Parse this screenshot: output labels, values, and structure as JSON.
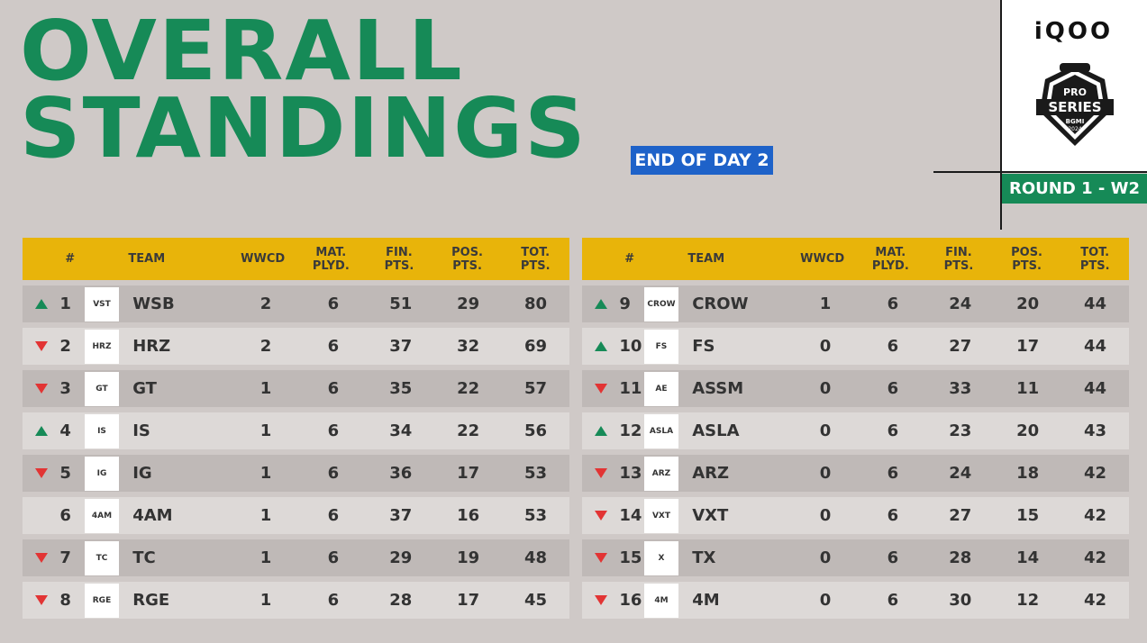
{
  "header": {
    "title_line1": "OVERALL",
    "title_line2": "STANDINGS",
    "day_label": "END OF DAY 2",
    "brand": "iQOO",
    "round_label": "ROUND 1 - W2",
    "logo_text": {
      "pro": "PRO",
      "series": "SERIES",
      "bgmi": "BGMI",
      "year": "2024"
    }
  },
  "columns": {
    "rank": "#",
    "team": "TEAM",
    "wwcd": "WWCD",
    "mat_l1": "MAT.",
    "mat_l2": "PLYD.",
    "fin_l1": "FIN.",
    "fin_l2": "PTS.",
    "pos_l1": "POS.",
    "pos_l2": "PTS.",
    "tot_l1": "TOT.",
    "tot_l2": "PTS."
  },
  "colors": {
    "green": "#168a57",
    "yellow": "#e8b40a",
    "blue": "#1e62c9",
    "red": "#e23434"
  },
  "left": [
    {
      "trend": "up",
      "rank": "1",
      "team": "WSB",
      "logo": "VST",
      "wwcd": "2",
      "mat": "6",
      "fin": "51",
      "pos": "29",
      "tot": "80"
    },
    {
      "trend": "down",
      "rank": "2",
      "team": "HRZ",
      "logo": "HRZ",
      "wwcd": "2",
      "mat": "6",
      "fin": "37",
      "pos": "32",
      "tot": "69"
    },
    {
      "trend": "down",
      "rank": "3",
      "team": "GT",
      "logo": "GT",
      "wwcd": "1",
      "mat": "6",
      "fin": "35",
      "pos": "22",
      "tot": "57"
    },
    {
      "trend": "up",
      "rank": "4",
      "team": "IS",
      "logo": "IS",
      "wwcd": "1",
      "mat": "6",
      "fin": "34",
      "pos": "22",
      "tot": "56"
    },
    {
      "trend": "down",
      "rank": "5",
      "team": "IG",
      "logo": "IG",
      "wwcd": "1",
      "mat": "6",
      "fin": "36",
      "pos": "17",
      "tot": "53"
    },
    {
      "trend": "none",
      "rank": "6",
      "team": "4AM",
      "logo": "4AM",
      "wwcd": "1",
      "mat": "6",
      "fin": "37",
      "pos": "16",
      "tot": "53"
    },
    {
      "trend": "down",
      "rank": "7",
      "team": "TC",
      "logo": "TC",
      "wwcd": "1",
      "mat": "6",
      "fin": "29",
      "pos": "19",
      "tot": "48"
    },
    {
      "trend": "down",
      "rank": "8",
      "team": "RGE",
      "logo": "RGE",
      "wwcd": "1",
      "mat": "6",
      "fin": "28",
      "pos": "17",
      "tot": "45"
    }
  ],
  "right": [
    {
      "trend": "up",
      "rank": "9",
      "team": "CROW",
      "logo": "CROW",
      "wwcd": "1",
      "mat": "6",
      "fin": "24",
      "pos": "20",
      "tot": "44"
    },
    {
      "trend": "up",
      "rank": "10",
      "team": "FS",
      "logo": "FS",
      "wwcd": "0",
      "mat": "6",
      "fin": "27",
      "pos": "17",
      "tot": "44"
    },
    {
      "trend": "down",
      "rank": "11",
      "team": "ASSM",
      "logo": "AE",
      "wwcd": "0",
      "mat": "6",
      "fin": "33",
      "pos": "11",
      "tot": "44"
    },
    {
      "trend": "up",
      "rank": "12",
      "team": "ASLA",
      "logo": "ASLA",
      "wwcd": "0",
      "mat": "6",
      "fin": "23",
      "pos": "20",
      "tot": "43"
    },
    {
      "trend": "down",
      "rank": "13",
      "team": "ARZ",
      "logo": "ARZ",
      "wwcd": "0",
      "mat": "6",
      "fin": "24",
      "pos": "18",
      "tot": "42"
    },
    {
      "trend": "down",
      "rank": "14",
      "team": "VXT",
      "logo": "VXT",
      "wwcd": "0",
      "mat": "6",
      "fin": "27",
      "pos": "15",
      "tot": "42"
    },
    {
      "trend": "down",
      "rank": "15",
      "team": "TX",
      "logo": "X",
      "wwcd": "0",
      "mat": "6",
      "fin": "28",
      "pos": "14",
      "tot": "42"
    },
    {
      "trend": "down",
      "rank": "16",
      "team": "4M",
      "logo": "4M",
      "wwcd": "0",
      "mat": "6",
      "fin": "30",
      "pos": "12",
      "tot": "42"
    }
  ]
}
